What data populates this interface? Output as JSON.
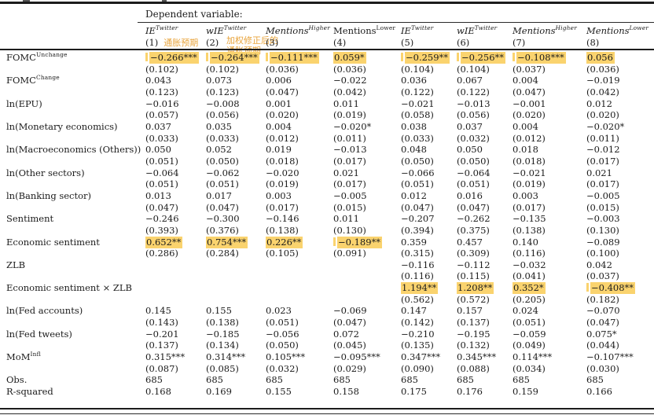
{
  "header": {
    "dependent_variable_label": "Dependent variable:"
  },
  "columns": [
    {
      "name": "IE",
      "sup": "Twitter",
      "italic": true,
      "num": "(1)",
      "annotation": [
        "通胀预期"
      ],
      "annotation_style": "inline"
    },
    {
      "name": "wIE",
      "sup": "Twitter",
      "italic": true,
      "num": "(2)",
      "annotation": [
        "加权修正后的",
        "通胀预期"
      ],
      "annotation_style": "block"
    },
    {
      "name": "Mentions",
      "sup": "Higher",
      "italic": true,
      "num": "(3)"
    },
    {
      "name": "Mentions",
      "sup": "Lower",
      "italic": false,
      "num": "(4)"
    },
    {
      "name": "IE",
      "sup": "Twitter",
      "italic": true,
      "num": "(5)"
    },
    {
      "name": "wIE",
      "sup": "Twitter",
      "italic": true,
      "num": "(6)"
    },
    {
      "name": "Mentions",
      "sup": "Higher",
      "italic": true,
      "num": "(7)"
    },
    {
      "name": "Mentions",
      "sup": "Lower",
      "italic": true,
      "num": "(8)"
    }
  ],
  "rows": [
    {
      "label": {
        "base": "FOMC",
        "sup": "Unchange"
      },
      "coef": [
        "−0.266***",
        "−0.264***",
        "−0.111***",
        "0.059*",
        "−0.259**",
        "−0.256**",
        "−0.108***",
        "0.056"
      ],
      "se": [
        "(0.102)",
        "(0.102)",
        "(0.036)",
        "(0.036)",
        "(0.104)",
        "(0.104)",
        "(0.037)",
        "(0.036)"
      ],
      "highlight": [
        0,
        1,
        2,
        3,
        4,
        5,
        6,
        7
      ]
    },
    {
      "label": {
        "base": "FOMC",
        "sup": "Change"
      },
      "coef": [
        "0.043",
        "0.073",
        "0.006",
        "−0.022",
        "0.036",
        "0.067",
        "0.004",
        "−0.019"
      ],
      "se": [
        "(0.123)",
        "(0.123)",
        "(0.047)",
        "(0.042)",
        "(0.122)",
        "(0.122)",
        "(0.047)",
        "(0.042)"
      ],
      "highlight": []
    },
    {
      "label": {
        "base": "ln(EPU)"
      },
      "coef": [
        "−0.016",
        "−0.008",
        "0.001",
        "0.011",
        "−0.021",
        "−0.013",
        "−0.001",
        "0.012"
      ],
      "se": [
        "(0.057)",
        "(0.056)",
        "(0.020)",
        "(0.019)",
        "(0.058)",
        "(0.056)",
        "(0.020)",
        "(0.020)"
      ],
      "highlight": []
    },
    {
      "label": {
        "base": "ln(Monetary economics)"
      },
      "coef": [
        "0.037",
        "0.035",
        "0.004",
        "−0.020*",
        "0.038",
        "0.037",
        "0.004",
        "−0.020*"
      ],
      "se": [
        "(0.033)",
        "(0.033)",
        "(0.012)",
        "(0.011)",
        "(0.033)",
        "(0.032)",
        "(0.012)",
        "(0.011)"
      ],
      "highlight": []
    },
    {
      "label": {
        "base": "ln(Macroeconomics (Others))"
      },
      "coef": [
        "0.050",
        "0.052",
        "0.019",
        "−0.013",
        "0.048",
        "0.050",
        "0.018",
        "−0.012"
      ],
      "se": [
        "(0.051)",
        "(0.050)",
        "(0.018)",
        "(0.017)",
        "(0.050)",
        "(0.050)",
        "(0.018)",
        "(0.017)"
      ],
      "highlight": []
    },
    {
      "label": {
        "base": "ln(Other sectors)"
      },
      "coef": [
        "−0.064",
        "−0.062",
        "−0.020",
        "0.021",
        "−0.066",
        "−0.064",
        "−0.021",
        "0.021"
      ],
      "se": [
        "(0.051)",
        "(0.051)",
        "(0.019)",
        "(0.017)",
        "(0.051)",
        "(0.051)",
        "(0.019)",
        "(0.017)"
      ],
      "highlight": []
    },
    {
      "label": {
        "base": "ln(Banking sector)"
      },
      "coef": [
        "0.013",
        "0.017",
        "0.003",
        "−0.005",
        "0.012",
        "0.016",
        "0.003",
        "−0.005"
      ],
      "se": [
        "(0.047)",
        "(0.047)",
        "(0.017)",
        "(0.015)",
        "(0.047)",
        "(0.047)",
        "(0.017)",
        "(0.015)"
      ],
      "highlight": []
    },
    {
      "label": {
        "base": "Sentiment"
      },
      "coef": [
        "−0.246",
        "−0.300",
        "−0.146",
        "0.011",
        "−0.207",
        "−0.262",
        "−0.135",
        "−0.003"
      ],
      "se": [
        "(0.393)",
        "(0.376)",
        "(0.138)",
        "(0.130)",
        "(0.394)",
        "(0.375)",
        "(0.138)",
        "(0.130)"
      ],
      "highlight": []
    },
    {
      "label": {
        "base": "Economic sentiment"
      },
      "coef": [
        "0.652**",
        "0.754***",
        "0.226**",
        "−0.189**",
        "0.359",
        "0.457",
        "0.140",
        "−0.089"
      ],
      "se": [
        "(0.286)",
        "(0.284)",
        "(0.105)",
        "(0.091)",
        "(0.315)",
        "(0.309)",
        "(0.116)",
        "(0.100)"
      ],
      "highlight": [
        0,
        1,
        2,
        3
      ]
    },
    {
      "label": {
        "base": "ZLB"
      },
      "coef": [
        "",
        "",
        "",
        "",
        "−0.116",
        "−0.112",
        "−0.032",
        "0.042"
      ],
      "se": [
        "",
        "",
        "",
        "",
        "(0.116)",
        "(0.115)",
        "(0.041)",
        "(0.037)"
      ],
      "highlight": []
    },
    {
      "label": {
        "base": "Economic sentiment × ZLB"
      },
      "coef": [
        "",
        "",
        "",
        "",
        "1.194**",
        "1.208**",
        "0.352*",
        "−0.408**"
      ],
      "se": [
        "",
        "",
        "",
        "",
        "(0.562)",
        "(0.572)",
        "(0.205)",
        "(0.182)"
      ],
      "highlight": [
        4,
        5,
        6,
        7
      ]
    },
    {
      "label": {
        "base": "ln(Fed accounts)"
      },
      "coef": [
        "0.145",
        "0.155",
        "0.023",
        "−0.069",
        "0.147",
        "0.157",
        "0.024",
        "−0.070"
      ],
      "se": [
        "(0.143)",
        "(0.138)",
        "(0.051)",
        "(0.047)",
        "(0.142)",
        "(0.137)",
        "(0.051)",
        "(0.047)"
      ],
      "highlight": []
    },
    {
      "label": {
        "base": "ln(Fed tweets)"
      },
      "coef": [
        "−0.201",
        "−0.185",
        "−0.056",
        "0.072",
        "−0.210",
        "−0.195",
        "−0.059",
        "0.075*"
      ],
      "se": [
        "(0.137)",
        "(0.134)",
        "(0.050)",
        "(0.045)",
        "(0.135)",
        "(0.132)",
        "(0.049)",
        "(0.044)"
      ],
      "highlight": []
    },
    {
      "label": {
        "base": "MoM",
        "sup": "Infl"
      },
      "coef": [
        "0.315***",
        "0.314***",
        "0.105***",
        "−0.095***",
        "0.347***",
        "0.345***",
        "0.114***",
        "−0.107***"
      ],
      "se": [
        "(0.087)",
        "(0.085)",
        "(0.032)",
        "(0.029)",
        "(0.090)",
        "(0.088)",
        "(0.034)",
        "(0.030)"
      ],
      "highlight": []
    },
    {
      "label": {
        "base": "Obs."
      },
      "coef": [
        "685",
        "685",
        "685",
        "685",
        "685",
        "685",
        "685",
        "685"
      ],
      "se": null,
      "highlight": []
    },
    {
      "label": {
        "base": "R-squared"
      },
      "coef": [
        "0.168",
        "0.169",
        "0.155",
        "0.158",
        "0.175",
        "0.176",
        "0.159",
        "0.166"
      ],
      "se": null,
      "highlight": []
    }
  ],
  "colors": {
    "highlight": "#fad36e",
    "annotation": "#e8a43c",
    "rule": "#1c1c1c",
    "text": "#1b1b1b"
  }
}
